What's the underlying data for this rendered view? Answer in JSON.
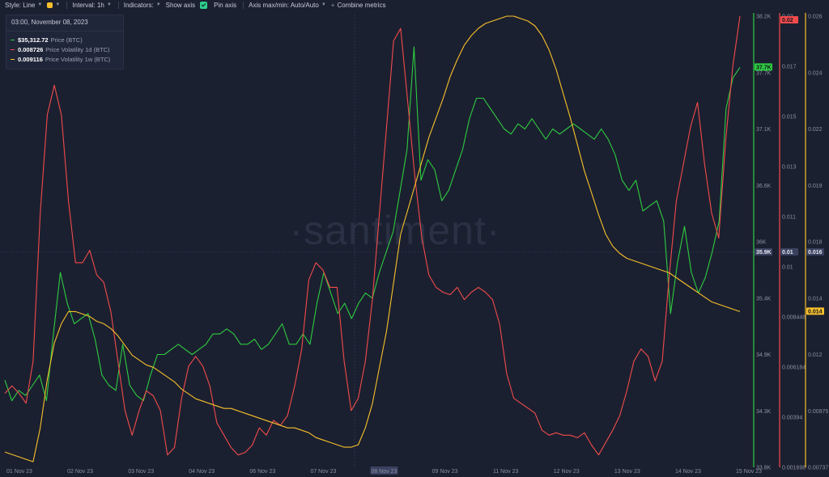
{
  "toolbar": {
    "style_label": "Style: Line",
    "interval_label": "Interval: 1h",
    "indicators_label": "Indicators:",
    "show_axis_label": "Show axis",
    "pin_axis_label": "Pin axis",
    "axis_maxmin_label": "Axis max/min: Auto/Auto",
    "combine_label": "Combine metrics"
  },
  "legend": {
    "date": "03:00, November 08, 2023",
    "rows": [
      {
        "value": "$35,312.72",
        "name": "Price (BTC)",
        "color": "#2ecc40"
      },
      {
        "value": "0.008726",
        "name": "Price Volatility 1d (BTC)",
        "color": "#f24b4b"
      },
      {
        "value": "0.009116",
        "name": "Price Volatility 1w (BTC)",
        "color": "#f7c02b"
      }
    ]
  },
  "watermark": "·santiment·",
  "chart_data": {
    "type": "line",
    "x_labels": [
      "01 Nov 23",
      "02 Nov 23",
      "03 Nov 23",
      "04 Nov 23",
      "06 Nov 23",
      "07 Nov 23",
      "08 Nov 23",
      "09 Nov 23",
      "11 Nov 23",
      "12 Nov 23",
      "13 Nov 23",
      "14 Nov 23",
      "15 Nov 23"
    ],
    "x_highlight": "08 Nov 23",
    "axes": [
      {
        "id": "price",
        "color": "#2ecc40",
        "min": 33800,
        "max": 38200,
        "ticks": [
          "38.2K",
          "37.7K",
          "37.1K",
          "36.6K",
          "36K",
          "35.4K",
          "34.9K",
          "34.3K",
          "33.8K"
        ],
        "crosshair_label": "35.9K",
        "last_label": "37.7K"
      },
      {
        "id": "vol1d",
        "color": "#f24b4b",
        "min": 0.001698,
        "max": 0.02,
        "ticks": [
          "0.02",
          "0.017",
          "0.015",
          "0.013",
          "0.011",
          "0.01",
          "0.008448",
          "0.006184",
          "0.00394",
          "0.001698"
        ],
        "crosshair_label": "0.01",
        "last_label": "0.02"
      },
      {
        "id": "vol1w",
        "color": "#f7c02b",
        "min": 0.00737,
        "max": 0.026,
        "ticks": [
          "0.026",
          "0.024",
          "0.022",
          "0.019",
          "0.018",
          "0.014",
          "0.012",
          "0.00975",
          "0.00737"
        ],
        "crosshair_label": "0.016",
        "last_label": "0.014"
      }
    ],
    "series": [
      {
        "name": "Price (BTC)",
        "axis": "price",
        "color": "#2ecc40",
        "values": [
          34650,
          34450,
          34550,
          34500,
          34600,
          34700,
          34450,
          35100,
          35700,
          35400,
          35200,
          35250,
          35300,
          35050,
          34700,
          34600,
          34550,
          35000,
          34600,
          34500,
          34450,
          34700,
          34900,
          34900,
          34950,
          35000,
          34950,
          34900,
          34950,
          35000,
          35100,
          35100,
          35150,
          35100,
          35000,
          35000,
          35050,
          34950,
          35000,
          35100,
          35200,
          35000,
          35000,
          35100,
          35000,
          35400,
          35700,
          35500,
          35300,
          35400,
          35250,
          35400,
          35500,
          35450,
          35700,
          35900,
          36100,
          36500,
          36900,
          37900,
          36600,
          36800,
          36700,
          36400,
          36500,
          36700,
          36900,
          37200,
          37400,
          37400,
          37300,
          37200,
          37100,
          37050,
          37150,
          37100,
          37200,
          37100,
          37000,
          37100,
          37050,
          37100,
          37150,
          37100,
          37050,
          37000,
          37100,
          37000,
          36850,
          36600,
          36500,
          36600,
          36300,
          36350,
          36400,
          36200,
          35300,
          35800,
          36150,
          35700,
          35500,
          35650,
          35900,
          36200,
          37300,
          37600,
          37700
        ]
      },
      {
        "name": "Price Volatility 1d (BTC)",
        "axis": "vol1d",
        "color": "#f24b4b",
        "values": [
          0.0047,
          0.005,
          0.0047,
          0.0043,
          0.006,
          0.012,
          0.016,
          0.0172,
          0.016,
          0.0125,
          0.01,
          0.01,
          0.0105,
          0.0095,
          0.0092,
          0.008,
          0.006,
          0.004,
          0.003,
          0.004,
          0.0048,
          0.0046,
          0.004,
          0.0022,
          0.0025,
          0.0045,
          0.0058,
          0.0062,
          0.0058,
          0.005,
          0.0035,
          0.003,
          0.0025,
          0.0022,
          0.0023,
          0.0026,
          0.0033,
          0.003,
          0.0036,
          0.0034,
          0.0038,
          0.005,
          0.0065,
          0.0093,
          0.01,
          0.0097,
          0.009,
          0.009,
          0.006,
          0.004,
          0.0045,
          0.006,
          0.0085,
          0.012,
          0.0155,
          0.019,
          0.0195,
          0.0165,
          0.0135,
          0.011,
          0.0095,
          0.009,
          0.0088,
          0.0087,
          0.009,
          0.0085,
          0.0088,
          0.009,
          0.0088,
          0.0085,
          0.0075,
          0.0055,
          0.0045,
          0.0043,
          0.0041,
          0.0039,
          0.0032,
          0.003,
          0.0031,
          0.003,
          0.003,
          0.0029,
          0.0031,
          0.0026,
          0.0022,
          0.0027,
          0.0032,
          0.0038,
          0.0048,
          0.006,
          0.0065,
          0.0062,
          0.0052,
          0.006,
          0.0095,
          0.0125,
          0.014,
          0.0155,
          0.0165,
          0.014,
          0.012,
          0.011,
          0.015,
          0.018,
          0.02
        ]
      },
      {
        "name": "Price Volatility 1w (BTC)",
        "axis": "vol1w",
        "color": "#f7c02b",
        "values": [
          0.008,
          0.0079,
          0.0078,
          0.0077,
          0.0076,
          0.009,
          0.011,
          0.0125,
          0.0133,
          0.0138,
          0.0138,
          0.0137,
          0.0136,
          0.0134,
          0.0133,
          0.0131,
          0.0128,
          0.0124,
          0.012,
          0.0118,
          0.0116,
          0.0115,
          0.0113,
          0.0111,
          0.0109,
          0.0106,
          0.0104,
          0.0102,
          0.0101,
          0.01,
          0.0099,
          0.0098,
          0.0098,
          0.0097,
          0.0096,
          0.0095,
          0.0094,
          0.0093,
          0.0092,
          0.0091,
          0.009,
          0.009,
          0.0089,
          0.0088,
          0.0086,
          0.0085,
          0.0084,
          0.0083,
          0.0082,
          0.0082,
          0.0083,
          0.009,
          0.01,
          0.0115,
          0.013,
          0.015,
          0.017,
          0.018,
          0.019,
          0.02,
          0.021,
          0.0218,
          0.0226,
          0.0235,
          0.0242,
          0.0248,
          0.0252,
          0.0255,
          0.0257,
          0.0258,
          0.0259,
          0.026,
          0.026,
          0.0259,
          0.0258,
          0.0256,
          0.0252,
          0.0246,
          0.0238,
          0.0228,
          0.0218,
          0.0207,
          0.0196,
          0.0187,
          0.0178,
          0.017,
          0.0165,
          0.0162,
          0.016,
          0.0159,
          0.0158,
          0.0157,
          0.0156,
          0.0155,
          0.0154,
          0.0152,
          0.015,
          0.0148,
          0.0146,
          0.0144,
          0.0142,
          0.0141,
          0.014,
          0.0139,
          0.0138
        ]
      }
    ],
    "grid": false
  }
}
